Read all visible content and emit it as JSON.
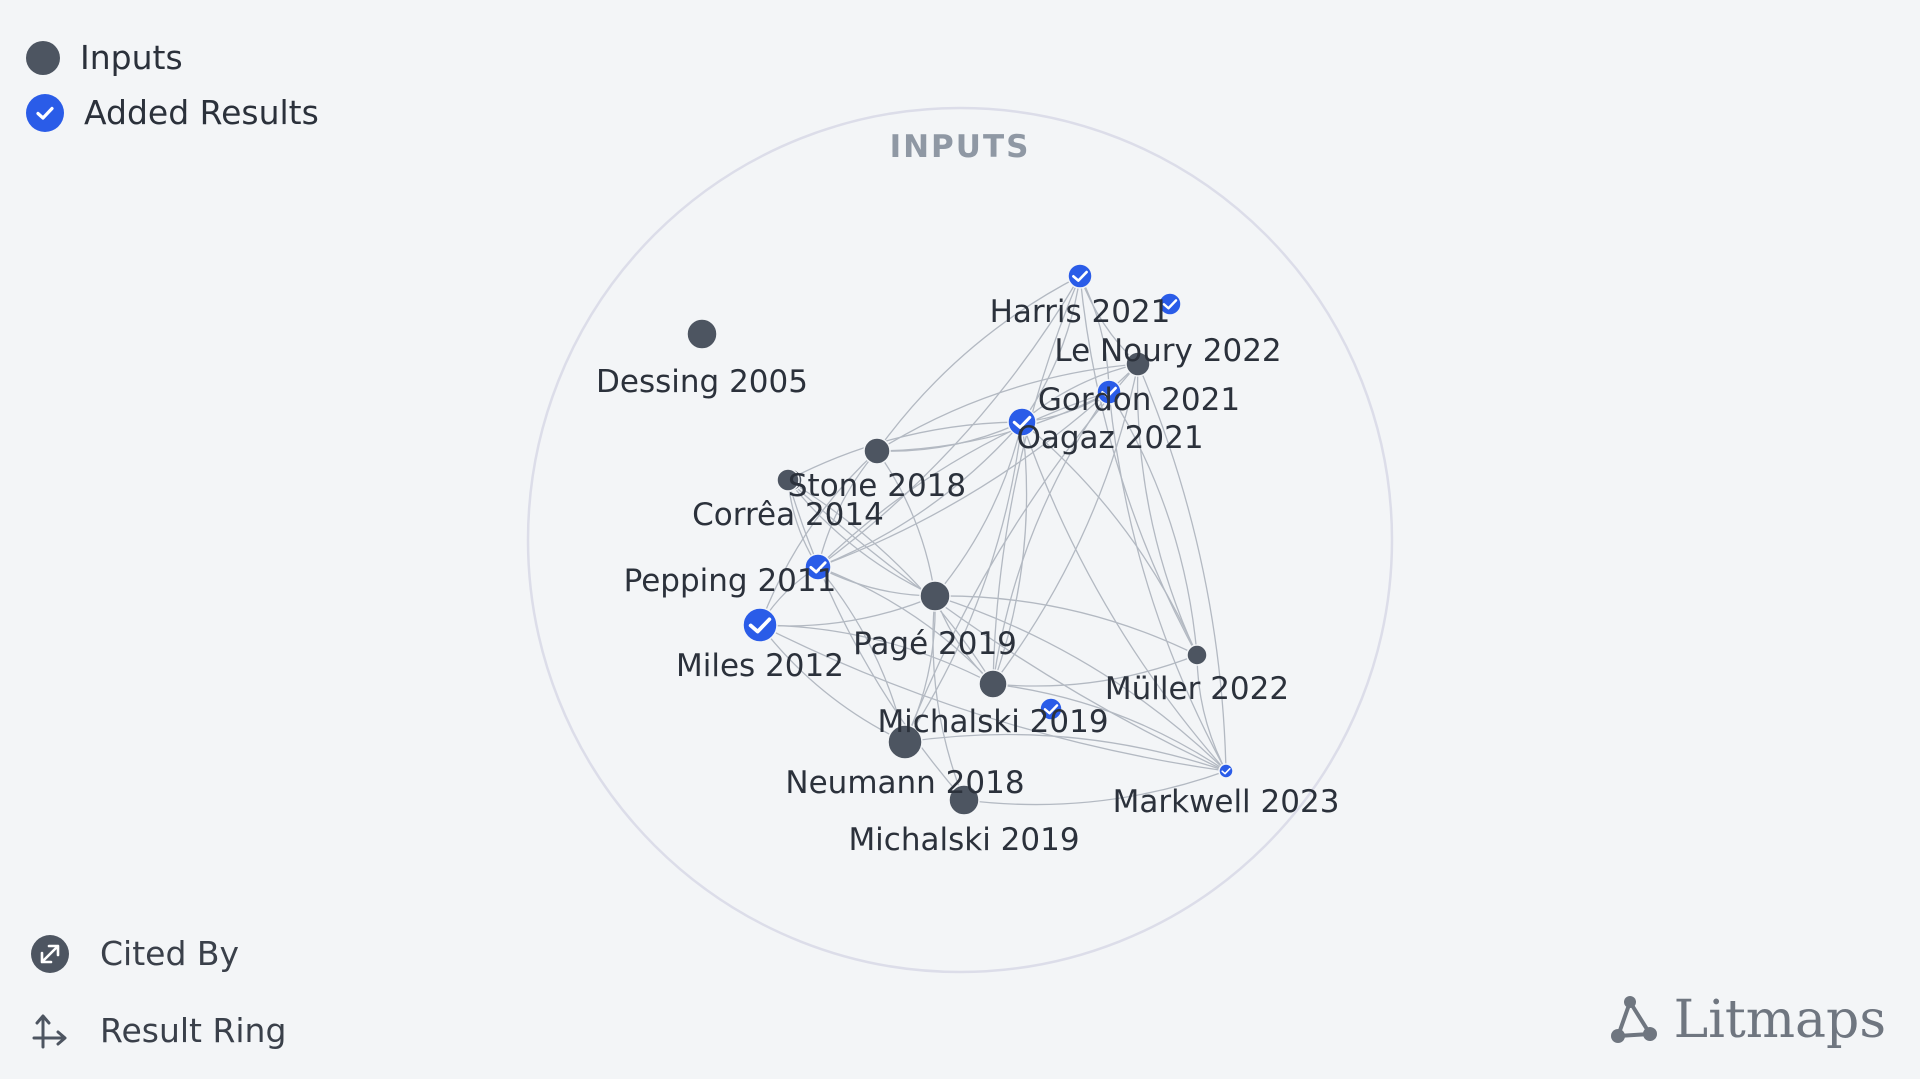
{
  "legend": {
    "inputs_label": "Inputs",
    "added_label": "Added Results",
    "input_icon": "dark-circle",
    "added_icon": "blue-check-circle"
  },
  "controls": {
    "cited_by_label": "Cited By",
    "cited_by_icon": "diagonal-arrows-icon",
    "result_ring_label": "Result Ring",
    "result_ring_icon": "axis-arrows-icon"
  },
  "ring": {
    "title": "INPUTS"
  },
  "brand": {
    "name": "Litmaps",
    "icon": "litmaps-logo-icon"
  },
  "colors": {
    "input_node": "#4d5561",
    "added_node": "#2a5ce8",
    "edge": "#b3b9c2",
    "ring": "#dcdde9",
    "background": "#f3f5f7"
  },
  "nodes": [
    {
      "id": "dessing2005",
      "label": "Dessing 2005",
      "kind": "input"
    },
    {
      "id": "harris2021",
      "label": "Harris 2021",
      "kind": "added"
    },
    {
      "id": "lenoury2022",
      "label": "Le Noury 2022",
      "kind": "input"
    },
    {
      "id": "gordon2021",
      "label": "Gordon 2021",
      "kind": "added"
    },
    {
      "id": "oagaz2021",
      "label": "Oagaz 2021",
      "kind": "added"
    },
    {
      "id": "stone2018",
      "label": "Stone 2018",
      "kind": "input"
    },
    {
      "id": "correa2014",
      "label": "Corrêa 2014",
      "kind": "input"
    },
    {
      "id": "pepping2011",
      "label": "Pepping 2011",
      "kind": "added"
    },
    {
      "id": "miles2012",
      "label": "Miles 2012",
      "kind": "added"
    },
    {
      "id": "page2019",
      "label": "Pagé 2019",
      "kind": "input"
    },
    {
      "id": "muller2022",
      "label": "Müller 2022",
      "kind": "input"
    },
    {
      "id": "michalski2019a",
      "label": "Michalski 2019",
      "kind": "input"
    },
    {
      "id": "neumann2018",
      "label": "Neumann 2018",
      "kind": "input"
    },
    {
      "id": "markwell2023",
      "label": "Markwell 2023",
      "kind": "added"
    },
    {
      "id": "michalski2019b",
      "label": "Michalski 2019",
      "kind": "input"
    }
  ]
}
